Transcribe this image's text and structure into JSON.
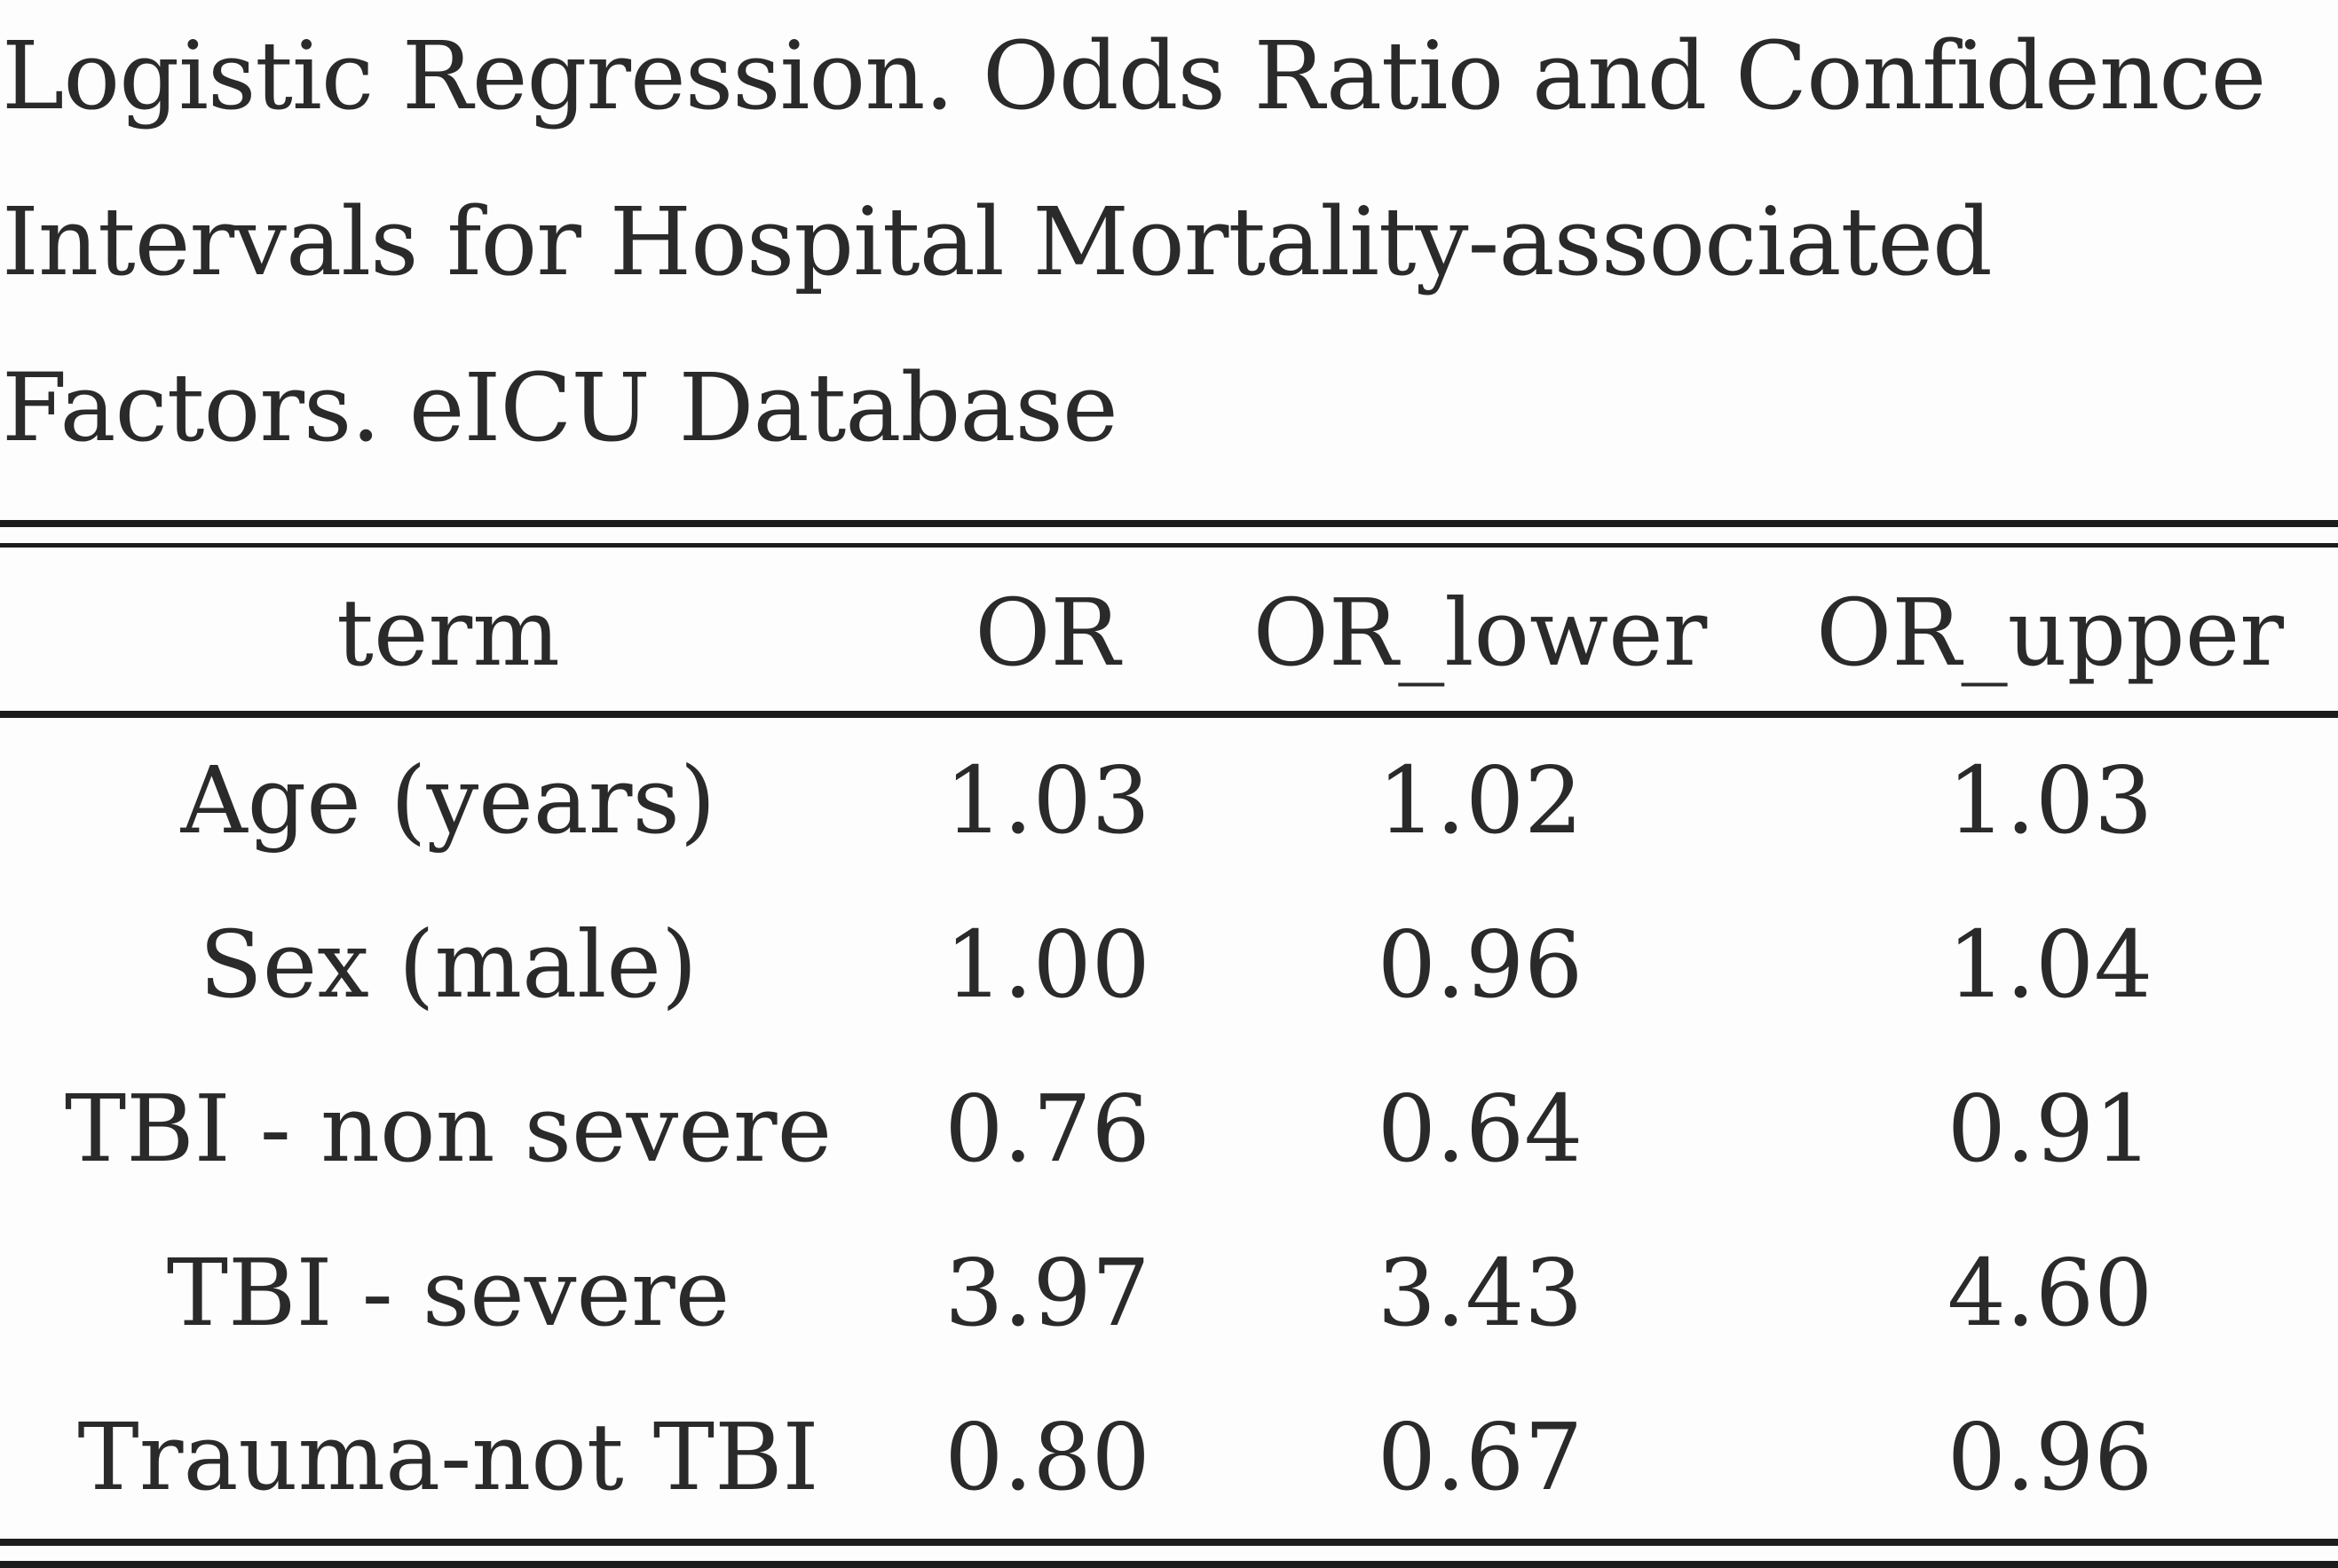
{
  "caption": {
    "text": "Logistic Regression. Odds Ratio and Confidence Intervals for Hospital Mortality-associated Factors. eICU Database"
  },
  "table": {
    "columns": [
      "term",
      "OR",
      "OR_lower",
      "OR_upper"
    ],
    "rows": [
      {
        "term": "Age (years)",
        "or": "1.03",
        "or_lower": "1.02",
        "or_upper": "1.03"
      },
      {
        "term": "Sex (male)",
        "or": "1.00",
        "or_lower": "0.96",
        "or_upper": "1.04"
      },
      {
        "term": "TBI - non severe",
        "or": "0.76",
        "or_lower": "0.64",
        "or_upper": "0.91"
      },
      {
        "term": "TBI - severe",
        "or": "3.97",
        "or_lower": "3.43",
        "or_upper": "4.60"
      },
      {
        "term": "Trauma-not TBI",
        "or": "0.80",
        "or_lower": "0.67",
        "or_upper": "0.96"
      }
    ]
  }
}
